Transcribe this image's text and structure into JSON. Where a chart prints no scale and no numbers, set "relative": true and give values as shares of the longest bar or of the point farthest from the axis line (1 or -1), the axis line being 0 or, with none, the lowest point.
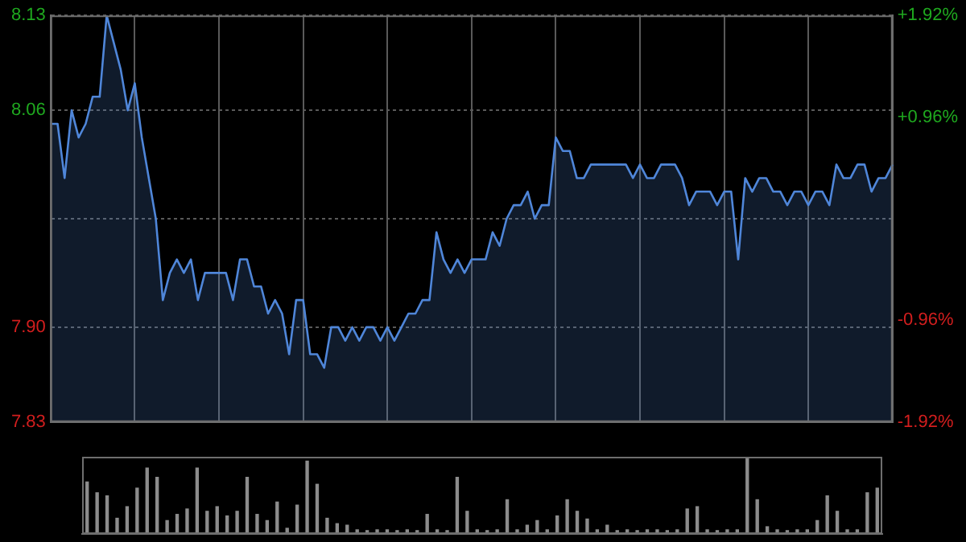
{
  "chart_data": [
    {
      "type": "area",
      "color": "#4f86d9",
      "categories": [
        null,
        null,
        null,
        null,
        null,
        null,
        null,
        null,
        null,
        null,
        null,
        null,
        null,
        null,
        null,
        null,
        null,
        null,
        null,
        null,
        null,
        null,
        null,
        null,
        null,
        null,
        null,
        null,
        null,
        null,
        null,
        null,
        null,
        null,
        null,
        null,
        null,
        null,
        null,
        null,
        null,
        null,
        null,
        null,
        null,
        null,
        null,
        null,
        null,
        null,
        null,
        null,
        null,
        null,
        null,
        null,
        null,
        null,
        null,
        null,
        null,
        null,
        null,
        null,
        null,
        null,
        null,
        null,
        null,
        null,
        null,
        null,
        null,
        null,
        null,
        null,
        null,
        null,
        null,
        null,
        null,
        null,
        null,
        null,
        null,
        null,
        null,
        null,
        null,
        null,
        null,
        null,
        null,
        null,
        null,
        null,
        null,
        null,
        null,
        null,
        null,
        null,
        null,
        null,
        null,
        null,
        null,
        null,
        null,
        null,
        null,
        null,
        null,
        null,
        null,
        null,
        null,
        null,
        null,
        null,
        null
      ],
      "values": [
        8.05,
        8.05,
        8.01,
        8.06,
        8.04,
        8.05,
        8.07,
        8.07,
        8.13,
        8.11,
        8.09,
        8.06,
        8.08,
        8.04,
        8.01,
        7.98,
        7.92,
        7.94,
        7.95,
        7.94,
        7.95,
        7.92,
        7.94,
        7.94,
        7.94,
        7.94,
        7.92,
        7.95,
        7.95,
        7.93,
        7.93,
        7.91,
        7.92,
        7.91,
        7.88,
        7.92,
        7.92,
        7.88,
        7.88,
        7.87,
        7.9,
        7.9,
        7.89,
        7.9,
        7.89,
        7.9,
        7.9,
        7.89,
        7.9,
        7.89,
        7.9,
        7.91,
        7.91,
        7.92,
        7.92,
        7.97,
        7.95,
        7.94,
        7.95,
        7.94,
        7.95,
        7.95,
        7.95,
        7.97,
        7.96,
        7.98,
        7.99,
        7.99,
        8.0,
        7.98,
        7.99,
        7.99,
        8.04,
        8.03,
        8.03,
        8.01,
        8.01,
        8.02,
        8.02,
        8.02,
        8.02,
        8.02,
        8.02,
        8.01,
        8.02,
        8.01,
        8.01,
        8.02,
        8.02,
        8.02,
        8.01,
        7.99,
        8.0,
        8.0,
        8.0,
        7.99,
        8.0,
        8.0,
        7.95,
        8.01,
        8.0,
        8.01,
        8.01,
        8.0,
        8.0,
        7.99,
        8.0,
        8.0,
        7.99,
        8.0,
        8.0,
        7.99,
        8.02,
        8.01,
        8.01,
        8.02,
        8.02,
        8.0,
        8.01,
        8.01,
        8.02
      ],
      "ylim": [
        7.83,
        8.13
      ],
      "yticks": [
        {
          "value": 7.83,
          "label": "7.83"
        },
        {
          "value": 7.9,
          "label": "7.90"
        },
        {
          "value": 7.98,
          "label": null
        },
        {
          "value": 8.06,
          "label": "8.06"
        },
        {
          "value": 8.13,
          "label": "8.13"
        }
      ],
      "y2lim": [
        -1.92,
        1.92
      ],
      "y2ticks": [
        {
          "value": -1.92,
          "label": "-1.92%"
        },
        {
          "value": -0.96,
          "label": "-0.96%"
        },
        {
          "value": 0,
          "label": null
        },
        {
          "value": 0.96,
          "label": "+0.96%"
        },
        {
          "value": 1.92,
          "label": "+1.92%"
        }
      ],
      "grid": true,
      "legend": false,
      "marker": "none",
      "line_style": "solid"
    },
    {
      "type": "bar",
      "relative": true,
      "color": "#8c8c8c",
      "categories": [
        null,
        null,
        null,
        null,
        null,
        null,
        null,
        null,
        null,
        null,
        null,
        null,
        null,
        null,
        null,
        null,
        null,
        null,
        null,
        null,
        null,
        null,
        null,
        null,
        null,
        null,
        null,
        null,
        null,
        null,
        null,
        null,
        null,
        null,
        null,
        null,
        null,
        null,
        null,
        null,
        null,
        null,
        null,
        null,
        null,
        null,
        null,
        null,
        null,
        null,
        null,
        null,
        null,
        null,
        null,
        null,
        null,
        null,
        null,
        null,
        null,
        null,
        null,
        null,
        null,
        null,
        null,
        null,
        null,
        null,
        null,
        null,
        null,
        null,
        null,
        null,
        null,
        null,
        null,
        null
      ],
      "values": [
        0.68,
        0.54,
        0.5,
        0.21,
        0.36,
        0.6,
        0.86,
        0.74,
        0.18,
        0.26,
        0.33,
        0.86,
        0.3,
        0.36,
        0.24,
        0.3,
        0.74,
        0.26,
        0.18,
        0.42,
        0.08,
        0.38,
        0.95,
        0.65,
        0.21,
        0.14,
        0.12,
        0.06,
        0.05,
        0.06,
        0.06,
        0.05,
        0.06,
        0.05,
        0.26,
        0.06,
        0.05,
        0.74,
        0.3,
        0.06,
        0.05,
        0.06,
        0.45,
        0.06,
        0.12,
        0.18,
        0.06,
        0.24,
        0.45,
        0.3,
        0.2,
        0.06,
        0.12,
        0.05,
        0.06,
        0.05,
        0.06,
        0.06,
        0.05,
        0.06,
        0.33,
        0.36,
        0.06,
        0.05,
        0.06,
        0.06,
        1,
        0.45,
        0.1,
        0.06,
        0.05,
        0.06,
        0.06,
        0.18,
        0.5,
        0.3,
        0.06,
        0.06,
        0.54,
        0.6
      ],
      "legend": false
    }
  ]
}
